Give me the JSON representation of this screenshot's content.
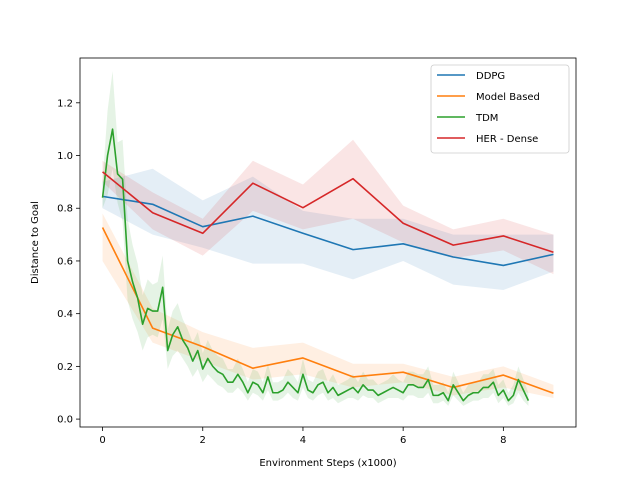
{
  "chart_data": {
    "type": "line",
    "title": "",
    "xlabel": "Environment Steps (x1000)",
    "ylabel": "Distance to Goal",
    "xlim": [
      -0.45,
      9.45
    ],
    "ylim": [
      -0.03,
      1.37
    ],
    "xticks": [
      0,
      2,
      4,
      6,
      8
    ],
    "yticks": [
      0.0,
      0.2,
      0.4,
      0.6,
      0.8,
      1.0,
      1.2
    ],
    "xtick_labels": [
      "0",
      "2",
      "4",
      "6",
      "8"
    ],
    "ytick_labels": [
      "0.0",
      "0.2",
      "0.4",
      "0.6",
      "0.8",
      "1.0",
      "1.2"
    ],
    "grid": false,
    "legend_position": "top-right",
    "series": [
      {
        "name": "DDPG",
        "color": "#1f77b4",
        "x": [
          0,
          1,
          2,
          3,
          4,
          5,
          6,
          7,
          8,
          9
        ],
        "y": [
          0.845,
          0.815,
          0.73,
          0.77,
          0.705,
          0.643,
          0.665,
          0.615,
          0.583,
          0.625
        ],
        "lower": [
          0.8,
          0.7,
          0.65,
          0.59,
          0.59,
          0.53,
          0.6,
          0.51,
          0.49,
          0.56
        ],
        "upper": [
          0.9,
          0.95,
          0.83,
          0.92,
          0.79,
          0.76,
          0.76,
          0.7,
          0.7,
          0.7
        ]
      },
      {
        "name": "Model Based",
        "color": "#ff7f0e",
        "x": [
          0,
          1,
          2,
          3,
          4,
          5,
          6,
          7,
          8,
          9
        ],
        "y": [
          0.727,
          0.345,
          0.275,
          0.193,
          0.232,
          0.16,
          0.178,
          0.12,
          0.167,
          0.098
        ],
        "lower": [
          0.6,
          0.29,
          0.22,
          0.15,
          0.17,
          0.12,
          0.14,
          0.09,
          0.12,
          0.08
        ],
        "upper": [
          0.78,
          0.42,
          0.33,
          0.27,
          0.29,
          0.21,
          0.21,
          0.16,
          0.2,
          0.13
        ]
      },
      {
        "name": "TDM",
        "color": "#2ca02c",
        "x": [
          0,
          0.1,
          0.2,
          0.3,
          0.4,
          0.5,
          0.6,
          0.7,
          0.8,
          0.9,
          1.0,
          1.1,
          1.2,
          1.3,
          1.4,
          1.5,
          1.6,
          1.7,
          1.8,
          1.9,
          2.0,
          2.1,
          2.2,
          2.3,
          2.4,
          2.5,
          2.6,
          2.7,
          2.8,
          2.9,
          3.0,
          3.1,
          3.2,
          3.3,
          3.4,
          3.5,
          3.6,
          3.7,
          3.8,
          3.9,
          4.0,
          4.1,
          4.2,
          4.3,
          4.4,
          4.5,
          4.6,
          4.7,
          4.8,
          4.9,
          5.0,
          5.1,
          5.2,
          5.3,
          5.4,
          5.5,
          5.6,
          5.7,
          5.8,
          5.9,
          6.0,
          6.1,
          6.2,
          6.3,
          6.4,
          6.5,
          6.6,
          6.7,
          6.8,
          6.9,
          7.0,
          7.1,
          7.2,
          7.3,
          7.4,
          7.5,
          7.6,
          7.7,
          7.8,
          7.9,
          8.0,
          8.1,
          8.2,
          8.3,
          8.4,
          8.5
        ],
        "y": [
          0.84,
          1.0,
          1.1,
          0.93,
          0.91,
          0.6,
          0.52,
          0.46,
          0.36,
          0.42,
          0.41,
          0.41,
          0.5,
          0.26,
          0.32,
          0.35,
          0.3,
          0.27,
          0.22,
          0.26,
          0.19,
          0.23,
          0.2,
          0.18,
          0.17,
          0.14,
          0.14,
          0.17,
          0.14,
          0.1,
          0.14,
          0.13,
          0.1,
          0.16,
          0.1,
          0.1,
          0.11,
          0.14,
          0.12,
          0.1,
          0.17,
          0.11,
          0.1,
          0.13,
          0.14,
          0.1,
          0.12,
          0.09,
          0.1,
          0.11,
          0.12,
          0.1,
          0.13,
          0.11,
          0.11,
          0.09,
          0.1,
          0.11,
          0.12,
          0.11,
          0.1,
          0.13,
          0.13,
          0.12,
          0.12,
          0.15,
          0.09,
          0.09,
          0.1,
          0.07,
          0.13,
          0.1,
          0.07,
          0.09,
          0.1,
          0.1,
          0.12,
          0.12,
          0.14,
          0.09,
          0.11,
          0.07,
          0.09,
          0.15,
          0.11,
          0.07
        ],
        "lower": [
          0.8,
          0.85,
          0.95,
          0.82,
          0.75,
          0.45,
          0.38,
          0.33,
          0.26,
          0.31,
          0.32,
          0.31,
          0.38,
          0.19,
          0.24,
          0.26,
          0.23,
          0.2,
          0.16,
          0.19,
          0.14,
          0.17,
          0.15,
          0.13,
          0.12,
          0.1,
          0.1,
          0.12,
          0.1,
          0.07,
          0.1,
          0.09,
          0.07,
          0.11,
          0.07,
          0.07,
          0.08,
          0.1,
          0.08,
          0.07,
          0.12,
          0.08,
          0.07,
          0.09,
          0.1,
          0.07,
          0.08,
          0.06,
          0.07,
          0.08,
          0.08,
          0.07,
          0.09,
          0.08,
          0.08,
          0.06,
          0.07,
          0.08,
          0.08,
          0.08,
          0.07,
          0.09,
          0.09,
          0.08,
          0.08,
          0.1,
          0.06,
          0.06,
          0.07,
          0.05,
          0.09,
          0.07,
          0.05,
          0.06,
          0.07,
          0.07,
          0.08,
          0.08,
          0.1,
          0.06,
          0.08,
          0.05,
          0.06,
          0.1,
          0.07,
          0.05
        ],
        "upper": [
          0.9,
          1.17,
          1.32,
          1.05,
          1.06,
          0.76,
          0.66,
          0.59,
          0.47,
          0.53,
          0.51,
          0.52,
          0.62,
          0.34,
          0.41,
          0.44,
          0.38,
          0.34,
          0.29,
          0.33,
          0.25,
          0.3,
          0.26,
          0.24,
          0.23,
          0.19,
          0.19,
          0.23,
          0.19,
          0.14,
          0.19,
          0.18,
          0.14,
          0.21,
          0.14,
          0.14,
          0.15,
          0.19,
          0.17,
          0.14,
          0.23,
          0.15,
          0.14,
          0.18,
          0.19,
          0.14,
          0.17,
          0.13,
          0.14,
          0.15,
          0.17,
          0.14,
          0.18,
          0.15,
          0.15,
          0.13,
          0.14,
          0.15,
          0.17,
          0.15,
          0.14,
          0.18,
          0.18,
          0.17,
          0.17,
          0.2,
          0.13,
          0.13,
          0.14,
          0.1,
          0.18,
          0.14,
          0.1,
          0.13,
          0.14,
          0.14,
          0.17,
          0.17,
          0.19,
          0.13,
          0.15,
          0.1,
          0.13,
          0.2,
          0.15,
          0.1
        ]
      },
      {
        "name": "HER - Dense",
        "color": "#d62728",
        "x": [
          0,
          1,
          2,
          3,
          4,
          5,
          6,
          7,
          8,
          9
        ],
        "y": [
          0.938,
          0.783,
          0.705,
          0.895,
          0.802,
          0.912,
          0.743,
          0.66,
          0.695,
          0.633
        ],
        "lower": [
          0.9,
          0.72,
          0.62,
          0.79,
          0.72,
          0.76,
          0.67,
          0.61,
          0.64,
          0.55
        ],
        "upper": [
          0.98,
          0.86,
          0.76,
          0.98,
          0.89,
          1.06,
          0.81,
          0.72,
          0.76,
          0.7
        ]
      }
    ]
  }
}
